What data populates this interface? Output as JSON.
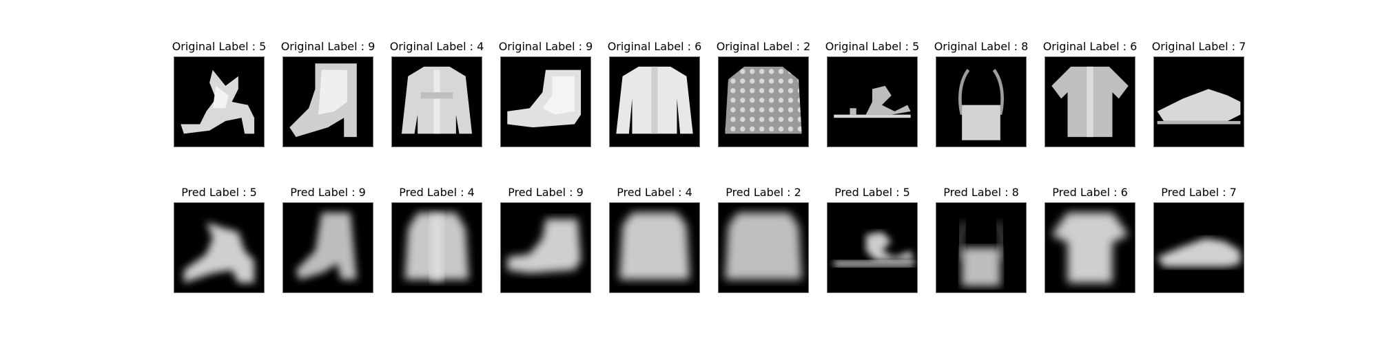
{
  "figure": {
    "original_row": [
      {
        "label": "Original Label : 5",
        "item_icon": "sandal-heel-icon"
      },
      {
        "label": "Original Label : 9",
        "item_icon": "ankle-boot-icon"
      },
      {
        "label": "Original Label : 4",
        "item_icon": "coat-icon"
      },
      {
        "label": "Original Label : 9",
        "item_icon": "ankle-boot-icon"
      },
      {
        "label": "Original Label : 6",
        "item_icon": "shirt-icon"
      },
      {
        "label": "Original Label : 2",
        "item_icon": "pullover-icon"
      },
      {
        "label": "Original Label : 5",
        "item_icon": "sandal-icon"
      },
      {
        "label": "Original Label : 8",
        "item_icon": "bag-icon"
      },
      {
        "label": "Original Label : 6",
        "item_icon": "shirt-icon"
      },
      {
        "label": "Original Label : 7",
        "item_icon": "sneaker-icon"
      }
    ],
    "pred_row": [
      {
        "label": "Pred Label : 5",
        "item_icon": "sandal-heel-blur-icon"
      },
      {
        "label": "Pred Label : 9",
        "item_icon": "ankle-boot-blur-icon"
      },
      {
        "label": "Pred Label : 4",
        "item_icon": "coat-blur-icon"
      },
      {
        "label": "Pred Label : 9",
        "item_icon": "ankle-boot-blur-icon"
      },
      {
        "label": "Pred Label : 4",
        "item_icon": "pullover-blur-icon"
      },
      {
        "label": "Pred Label : 2",
        "item_icon": "pullover-blur-icon"
      },
      {
        "label": "Pred Label : 5",
        "item_icon": "sandal-blur-icon"
      },
      {
        "label": "Pred Label : 8",
        "item_icon": "bag-blur-icon"
      },
      {
        "label": "Pred Label : 6",
        "item_icon": "shirt-blur-icon"
      },
      {
        "label": "Pred Label : 7",
        "item_icon": "sneaker-blur-icon"
      }
    ]
  }
}
